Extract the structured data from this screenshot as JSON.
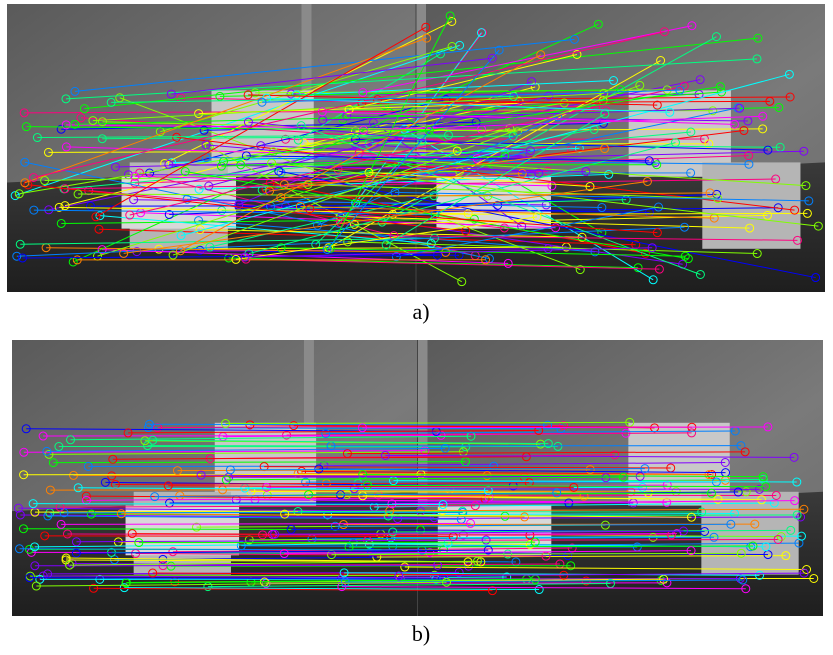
{
  "figures": [
    {
      "caption": "a)"
    },
    {
      "caption": "b)"
    }
  ]
}
